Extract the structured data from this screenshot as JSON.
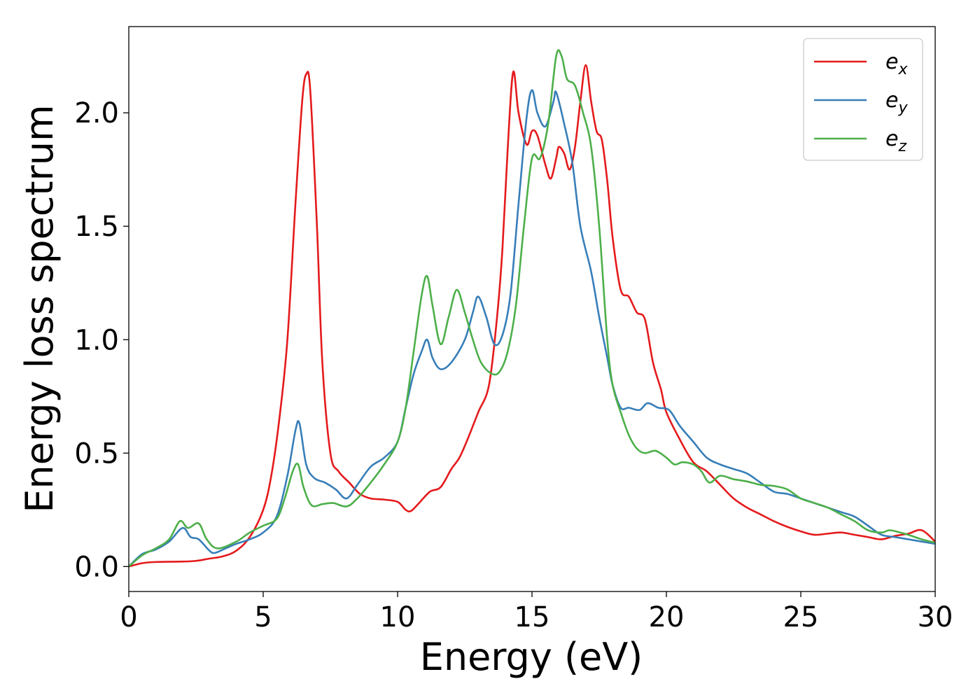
{
  "chart_data": {
    "type": "line",
    "title": "",
    "xlabel": "Energy (eV)",
    "ylabel": "Energy loss spectrum",
    "xlim": [
      0,
      30
    ],
    "ylim": [
      -0.11,
      2.38
    ],
    "xticks": [
      0,
      5,
      10,
      15,
      20,
      25,
      30
    ],
    "xtick_labels": [
      "0",
      "5",
      "10",
      "15",
      "20",
      "25",
      "30"
    ],
    "yticks": [
      0.0,
      0.5,
      1.0,
      1.5,
      2.0
    ],
    "ytick_labels": [
      "0.0",
      "0.5",
      "1.0",
      "1.5",
      "2.0"
    ],
    "grid": false,
    "legend_position": "top-right",
    "series": [
      {
        "name": "e_x",
        "label_base": "e",
        "label_sub": "x",
        "color": "#e41a1c",
        "points": [
          [
            0,
            0.0
          ],
          [
            0.5,
            0.015
          ],
          [
            1,
            0.02
          ],
          [
            2,
            0.022
          ],
          [
            2.5,
            0.025
          ],
          [
            3,
            0.035
          ],
          [
            3.5,
            0.045
          ],
          [
            4,
            0.07
          ],
          [
            4.5,
            0.13
          ],
          [
            5,
            0.25
          ],
          [
            5.3,
            0.4
          ],
          [
            5.6,
            0.65
          ],
          [
            5.9,
            1.0
          ],
          [
            6.2,
            1.6
          ],
          [
            6.45,
            2.05
          ],
          [
            6.6,
            2.17
          ],
          [
            6.75,
            2.1
          ],
          [
            7.0,
            1.5
          ],
          [
            7.2,
            0.9
          ],
          [
            7.5,
            0.5
          ],
          [
            7.8,
            0.42
          ],
          [
            8.2,
            0.37
          ],
          [
            8.6,
            0.32
          ],
          [
            9,
            0.3
          ],
          [
            9.5,
            0.295
          ],
          [
            10,
            0.285
          ],
          [
            10.3,
            0.25
          ],
          [
            10.5,
            0.245
          ],
          [
            10.8,
            0.28
          ],
          [
            11.2,
            0.33
          ],
          [
            11.6,
            0.35
          ],
          [
            12,
            0.43
          ],
          [
            12.3,
            0.48
          ],
          [
            12.6,
            0.56
          ],
          [
            13,
            0.68
          ],
          [
            13.4,
            0.8
          ],
          [
            13.7,
            1.1
          ],
          [
            13.9,
            1.4
          ],
          [
            14.1,
            1.85
          ],
          [
            14.3,
            2.18
          ],
          [
            14.5,
            2.0
          ],
          [
            14.8,
            1.86
          ],
          [
            15.0,
            1.92
          ],
          [
            15.2,
            1.9
          ],
          [
            15.5,
            1.77
          ],
          [
            15.7,
            1.71
          ],
          [
            15.9,
            1.8
          ],
          [
            16.0,
            1.85
          ],
          [
            16.2,
            1.82
          ],
          [
            16.4,
            1.75
          ],
          [
            16.6,
            1.85
          ],
          [
            16.8,
            2.05
          ],
          [
            17.0,
            2.21
          ],
          [
            17.2,
            2.05
          ],
          [
            17.4,
            1.92
          ],
          [
            17.6,
            1.88
          ],
          [
            17.8,
            1.7
          ],
          [
            18.0,
            1.45
          ],
          [
            18.3,
            1.22
          ],
          [
            18.6,
            1.19
          ],
          [
            18.9,
            1.12
          ],
          [
            19.2,
            1.09
          ],
          [
            19.5,
            0.9
          ],
          [
            19.8,
            0.78
          ],
          [
            20,
            0.68
          ],
          [
            20.5,
            0.56
          ],
          [
            21,
            0.46
          ],
          [
            21.5,
            0.42
          ],
          [
            22,
            0.36
          ],
          [
            22.5,
            0.3
          ],
          [
            23,
            0.26
          ],
          [
            23.5,
            0.23
          ],
          [
            24,
            0.2
          ],
          [
            24.5,
            0.175
          ],
          [
            25,
            0.155
          ],
          [
            25.5,
            0.14
          ],
          [
            26,
            0.145
          ],
          [
            26.5,
            0.15
          ],
          [
            27,
            0.14
          ],
          [
            27.5,
            0.13
          ],
          [
            28,
            0.12
          ],
          [
            28.5,
            0.135
          ],
          [
            29,
            0.145
          ],
          [
            29.5,
            0.16
          ],
          [
            30,
            0.11
          ]
        ]
      },
      {
        "name": "e_y",
        "label_base": "e",
        "label_sub": "y",
        "color": "#377eb8",
        "points": [
          [
            0,
            0.0
          ],
          [
            0.5,
            0.055
          ],
          [
            1,
            0.075
          ],
          [
            1.5,
            0.11
          ],
          [
            2.0,
            0.17
          ],
          [
            2.3,
            0.13
          ],
          [
            2.6,
            0.12
          ],
          [
            3.0,
            0.07
          ],
          [
            3.2,
            0.06
          ],
          [
            3.6,
            0.08
          ],
          [
            4,
            0.1
          ],
          [
            4.5,
            0.12
          ],
          [
            5,
            0.15
          ],
          [
            5.5,
            0.22
          ],
          [
            5.9,
            0.4
          ],
          [
            6.2,
            0.6
          ],
          [
            6.35,
            0.63
          ],
          [
            6.6,
            0.45
          ],
          [
            6.9,
            0.39
          ],
          [
            7.3,
            0.37
          ],
          [
            7.7,
            0.34
          ],
          [
            8.1,
            0.3
          ],
          [
            8.5,
            0.36
          ],
          [
            9,
            0.44
          ],
          [
            9.5,
            0.48
          ],
          [
            10,
            0.55
          ],
          [
            10.3,
            0.7
          ],
          [
            10.6,
            0.85
          ],
          [
            10.9,
            0.95
          ],
          [
            11.1,
            1.0
          ],
          [
            11.3,
            0.92
          ],
          [
            11.6,
            0.87
          ],
          [
            12,
            0.9
          ],
          [
            12.5,
            1.0
          ],
          [
            12.8,
            1.12
          ],
          [
            13.0,
            1.19
          ],
          [
            13.3,
            1.1
          ],
          [
            13.6,
            0.98
          ],
          [
            13.9,
            1.02
          ],
          [
            14.2,
            1.2
          ],
          [
            14.5,
            1.6
          ],
          [
            14.8,
            1.98
          ],
          [
            15.0,
            2.1
          ],
          [
            15.2,
            2.0
          ],
          [
            15.5,
            1.94
          ],
          [
            15.8,
            2.05
          ],
          [
            15.9,
            2.09
          ],
          [
            16.2,
            1.95
          ],
          [
            16.5,
            1.78
          ],
          [
            16.8,
            1.5
          ],
          [
            17.2,
            1.3
          ],
          [
            17.5,
            1.1
          ],
          [
            17.8,
            0.92
          ],
          [
            18.0,
            0.8
          ],
          [
            18.3,
            0.7
          ],
          [
            18.6,
            0.7
          ],
          [
            19,
            0.69
          ],
          [
            19.3,
            0.72
          ],
          [
            19.7,
            0.7
          ],
          [
            20.1,
            0.69
          ],
          [
            20.5,
            0.62
          ],
          [
            21,
            0.55
          ],
          [
            21.5,
            0.48
          ],
          [
            22,
            0.45
          ],
          [
            22.5,
            0.43
          ],
          [
            23,
            0.41
          ],
          [
            23.5,
            0.37
          ],
          [
            24,
            0.33
          ],
          [
            24.5,
            0.32
          ],
          [
            25,
            0.3
          ],
          [
            25.5,
            0.28
          ],
          [
            26,
            0.26
          ],
          [
            26.5,
            0.24
          ],
          [
            27,
            0.22
          ],
          [
            27.5,
            0.18
          ],
          [
            28,
            0.14
          ],
          [
            28.5,
            0.13
          ],
          [
            29,
            0.12
          ],
          [
            29.5,
            0.11
          ],
          [
            30,
            0.1
          ]
        ]
      },
      {
        "name": "e_z",
        "label_base": "e",
        "label_sub": "z",
        "color": "#4daf4a",
        "points": [
          [
            0,
            0.0
          ],
          [
            0.5,
            0.05
          ],
          [
            1,
            0.08
          ],
          [
            1.5,
            0.12
          ],
          [
            1.9,
            0.2
          ],
          [
            2.2,
            0.17
          ],
          [
            2.6,
            0.19
          ],
          [
            2.9,
            0.12
          ],
          [
            3.3,
            0.08
          ],
          [
            4,
            0.11
          ],
          [
            4.5,
            0.15
          ],
          [
            5,
            0.18
          ],
          [
            5.5,
            0.21
          ],
          [
            5.8,
            0.3
          ],
          [
            6.1,
            0.42
          ],
          [
            6.3,
            0.45
          ],
          [
            6.5,
            0.35
          ],
          [
            6.8,
            0.27
          ],
          [
            7.2,
            0.275
          ],
          [
            7.6,
            0.28
          ],
          [
            8.1,
            0.265
          ],
          [
            8.5,
            0.3
          ],
          [
            9,
            0.37
          ],
          [
            9.5,
            0.45
          ],
          [
            10,
            0.55
          ],
          [
            10.3,
            0.7
          ],
          [
            10.6,
            0.95
          ],
          [
            10.9,
            1.2
          ],
          [
            11.1,
            1.28
          ],
          [
            11.3,
            1.15
          ],
          [
            11.6,
            0.98
          ],
          [
            11.9,
            1.1
          ],
          [
            12.2,
            1.22
          ],
          [
            12.5,
            1.12
          ],
          [
            12.8,
            1.0
          ],
          [
            13.1,
            0.9
          ],
          [
            13.5,
            0.85
          ],
          [
            13.8,
            0.86
          ],
          [
            14.1,
            0.95
          ],
          [
            14.4,
            1.15
          ],
          [
            14.7,
            1.5
          ],
          [
            15.0,
            1.8
          ],
          [
            15.3,
            1.8
          ],
          [
            15.6,
            1.95
          ],
          [
            15.9,
            2.25
          ],
          [
            16.1,
            2.25
          ],
          [
            16.3,
            2.15
          ],
          [
            16.6,
            2.12
          ],
          [
            16.9,
            2.0
          ],
          [
            17.2,
            1.85
          ],
          [
            17.5,
            1.5
          ],
          [
            17.8,
            1.0
          ],
          [
            18.0,
            0.8
          ],
          [
            18.3,
            0.68
          ],
          [
            18.6,
            0.58
          ],
          [
            18.9,
            0.52
          ],
          [
            19.2,
            0.5
          ],
          [
            19.6,
            0.51
          ],
          [
            20,
            0.48
          ],
          [
            20.3,
            0.45
          ],
          [
            20.6,
            0.46
          ],
          [
            21,
            0.45
          ],
          [
            21.3,
            0.42
          ],
          [
            21.6,
            0.37
          ],
          [
            22,
            0.4
          ],
          [
            22.5,
            0.385
          ],
          [
            23,
            0.375
          ],
          [
            23.5,
            0.36
          ],
          [
            24,
            0.355
          ],
          [
            24.5,
            0.34
          ],
          [
            25,
            0.3
          ],
          [
            25.5,
            0.28
          ],
          [
            26,
            0.26
          ],
          [
            26.5,
            0.23
          ],
          [
            27,
            0.2
          ],
          [
            27.5,
            0.16
          ],
          [
            28,
            0.15
          ],
          [
            28.3,
            0.16
          ],
          [
            28.7,
            0.15
          ],
          [
            29,
            0.14
          ],
          [
            29.5,
            0.12
          ],
          [
            30,
            0.105
          ]
        ]
      }
    ]
  }
}
